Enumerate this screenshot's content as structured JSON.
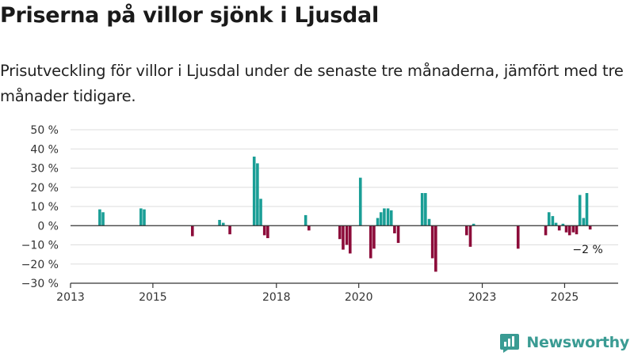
{
  "header": {
    "title": "Priserna på villor sjönk i Ljusdal",
    "subtitle": "Prisutveckling för villor i Ljusdal under de senaste tre månaderna, jämfört med tre månader tidigare."
  },
  "logo": {
    "text": "Newsworthy",
    "icon": "newsworthy-logo-icon"
  },
  "colors": {
    "positive": "#1a9e96",
    "negative": "#8c0c3a",
    "grid": "#dddddd",
    "axis": "#333333"
  },
  "chart_data": {
    "type": "bar",
    "ylim": [
      -30,
      50
    ],
    "y_ticks": [
      50,
      40,
      30,
      20,
      10,
      0,
      -10,
      -20,
      -30
    ],
    "y_tick_labels": [
      "50 %",
      "40 %",
      "30 %",
      "20 %",
      "10 %",
      "0 %",
      "−10 %",
      "−20 %",
      "−30 %"
    ],
    "x_range": [
      2013.0,
      2026.3
    ],
    "x_ticks": [
      2013,
      2015,
      2018,
      2020,
      2023,
      2025
    ],
    "x_tick_labels": [
      "2013",
      "2015",
      "2018",
      "2020",
      "2023",
      "2025"
    ],
    "grid": true,
    "annotation": {
      "text": "−2 %",
      "x": 2025.6,
      "value": -2
    },
    "bars": [
      {
        "x": 2013.71,
        "value": 8.5
      },
      {
        "x": 2013.79,
        "value": 7
      },
      {
        "x": 2014.71,
        "value": 9
      },
      {
        "x": 2014.79,
        "value": 8.5
      },
      {
        "x": 2015.96,
        "value": -5.5
      },
      {
        "x": 2016.62,
        "value": 3
      },
      {
        "x": 2016.71,
        "value": 1.5
      },
      {
        "x": 2016.87,
        "value": -4.5
      },
      {
        "x": 2017.46,
        "value": 36
      },
      {
        "x": 2017.54,
        "value": 32.5
      },
      {
        "x": 2017.62,
        "value": 14
      },
      {
        "x": 2017.71,
        "value": -5
      },
      {
        "x": 2017.79,
        "value": -6.5
      },
      {
        "x": 2018.71,
        "value": 5.5
      },
      {
        "x": 2018.79,
        "value": -2.5
      },
      {
        "x": 2019.54,
        "value": -7
      },
      {
        "x": 2019.62,
        "value": -12.5
      },
      {
        "x": 2019.71,
        "value": -10
      },
      {
        "x": 2019.79,
        "value": -14.5
      },
      {
        "x": 2020.04,
        "value": 25
      },
      {
        "x": 2020.29,
        "value": -17
      },
      {
        "x": 2020.37,
        "value": -12
      },
      {
        "x": 2020.46,
        "value": 4
      },
      {
        "x": 2020.54,
        "value": 7
      },
      {
        "x": 2020.62,
        "value": 9
      },
      {
        "x": 2020.71,
        "value": 9
      },
      {
        "x": 2020.79,
        "value": 8
      },
      {
        "x": 2020.87,
        "value": -4
      },
      {
        "x": 2020.96,
        "value": -9
      },
      {
        "x": 2021.54,
        "value": 17
      },
      {
        "x": 2021.62,
        "value": 17
      },
      {
        "x": 2021.71,
        "value": 3.5
      },
      {
        "x": 2021.79,
        "value": -17
      },
      {
        "x": 2021.87,
        "value": -24
      },
      {
        "x": 2022.62,
        "value": -5
      },
      {
        "x": 2022.71,
        "value": -11
      },
      {
        "x": 2022.79,
        "value": 1
      },
      {
        "x": 2023.87,
        "value": -12
      },
      {
        "x": 2024.54,
        "value": -5
      },
      {
        "x": 2024.62,
        "value": 7
      },
      {
        "x": 2024.71,
        "value": 5
      },
      {
        "x": 2024.79,
        "value": 1.5
      },
      {
        "x": 2024.87,
        "value": -2.5
      },
      {
        "x": 2024.96,
        "value": 1
      },
      {
        "x": 2025.04,
        "value": -3.5
      },
      {
        "x": 2025.12,
        "value": -5
      },
      {
        "x": 2025.21,
        "value": -3.5
      },
      {
        "x": 2025.29,
        "value": -4.5
      },
      {
        "x": 2025.37,
        "value": 16
      },
      {
        "x": 2025.46,
        "value": 4
      },
      {
        "x": 2025.54,
        "value": 17
      },
      {
        "x": 2025.62,
        "value": -2
      }
    ]
  }
}
